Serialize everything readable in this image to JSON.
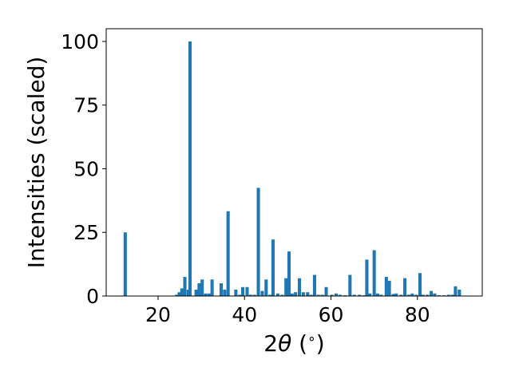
{
  "chart_data": {
    "type": "bar",
    "title": "",
    "xlabel_prefix": "2",
    "xlabel_symbol": "θ",
    "xlabel_unit": " (",
    "xlabel_degree": "∘",
    "xlabel_close": ")",
    "ylabel": "Intensities (scaled)",
    "xlim": [
      8,
      95
    ],
    "ylim": [
      0,
      105
    ],
    "xticks": [
      20,
      40,
      60,
      80
    ],
    "yticks": [
      0,
      25,
      50,
      75,
      100
    ],
    "bar_width": 0.75,
    "color": "#1f77b4",
    "grid": false,
    "x": [
      12.4,
      24.3,
      24.9,
      25.5,
      26.2,
      27.0,
      27.4,
      28.8,
      29.5,
      30.2,
      31.0,
      31.8,
      32.5,
      34.6,
      35.4,
      36.2,
      38.0,
      38.9,
      39.6,
      40.6,
      41.4,
      42.3,
      43.2,
      44.1,
      45.0,
      45.9,
      46.6,
      47.7,
      48.7,
      49.6,
      50.3,
      51.0,
      51.8,
      52.7,
      53.6,
      54.6,
      55.4,
      56.2,
      57.1,
      58.0,
      58.9,
      60.2,
      61.2,
      62.1,
      63.2,
      64.4,
      65.4,
      66.6,
      67.6,
      68.3,
      69.0,
      70.0,
      70.8,
      71.6,
      72.8,
      73.5,
      74.4,
      75.1,
      76.2,
      77.1,
      78.0,
      78.8,
      79.7,
      80.6,
      81.3,
      82.3,
      83.2,
      84.0,
      85.0,
      86.1,
      87.2,
      88.1,
      88.8,
      89.7
    ],
    "values": [
      25.0,
      0.5,
      1.5,
      3.0,
      7.5,
      2.5,
      100.0,
      2.5,
      5.0,
      6.5,
      1.0,
      1.0,
      6.5,
      5.0,
      2.5,
      33.3,
      2.5,
      0.5,
      3.5,
      3.5,
      0.5,
      0.5,
      42.5,
      2.0,
      6.5,
      0.5,
      22.2,
      1.0,
      0.5,
      7.0,
      17.5,
      1.0,
      1.5,
      7.0,
      1.5,
      1.5,
      0.5,
      8.3,
      0.5,
      0.5,
      3.5,
      0.5,
      1.0,
      0.5,
      0.3,
      8.3,
      0.5,
      0.5,
      0.3,
      14.3,
      1.0,
      18.0,
      1.0,
      0.5,
      7.5,
      6.0,
      0.8,
      1.0,
      0.5,
      7.0,
      0.5,
      1.0,
      0.5,
      9.0,
      0.5,
      0.5,
      2.0,
      1.0,
      0.3,
      0.3,
      0.5,
      0.5,
      3.8,
      2.5
    ]
  }
}
